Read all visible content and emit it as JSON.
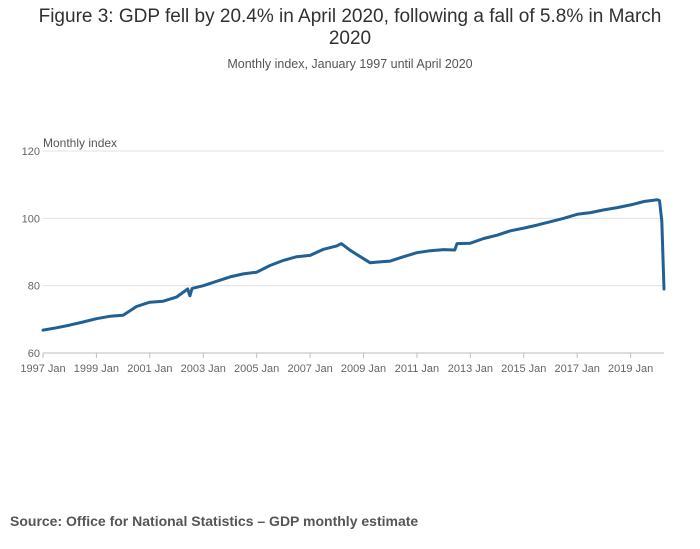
{
  "title": "Figure 3: GDP fell by 20.4% in April 2020, following a fall of 5.8% in March 2020",
  "subtitle": "Monthly index, January 1997 until April 2020",
  "source": "Source: Office for National Statistics – GDP monthly estimate",
  "colors": {
    "line": "#206095",
    "grid": "#e0e0e0",
    "axis": "#bebebe"
  },
  "chart_data": {
    "type": "line",
    "title": "Figure 3: GDP fell by 20.4% in April 2020, following a fall of 5.8% in March 2020",
    "subtitle": "Monthly index, January 1997 until April 2020",
    "ylabel": "Monthly index",
    "xlabel": "",
    "ylim": [
      60,
      120
    ],
    "xlim": [
      "1997-01",
      "2020-04"
    ],
    "y_ticks": [
      "60",
      "80",
      "100",
      "120"
    ],
    "x_ticks": [
      "1997 Jan",
      "1999 Jan",
      "2001 Jan",
      "2003 Jan",
      "2005 Jan",
      "2007 Jan",
      "2009 Jan",
      "2011 Jan",
      "2013 Jan",
      "2015 Jan",
      "2017 Jan",
      "2019 Jan"
    ],
    "grid": "horizontal",
    "series": [
      {
        "x": [
          "1997-01",
          "1997-07",
          "1998-01",
          "1998-07",
          "1999-01",
          "1999-07",
          "2000-01",
          "2000-07",
          "2001-01",
          "2001-07",
          "2002-01",
          "2002-06",
          "2002-07",
          "2002-08",
          "2003-01",
          "2003-07",
          "2004-01",
          "2004-07",
          "2005-01",
          "2005-07",
          "2006-01",
          "2006-07",
          "2007-01",
          "2007-07",
          "2008-01",
          "2008-03",
          "2008-07",
          "2009-01",
          "2009-04",
          "2009-07",
          "2010-01",
          "2010-07",
          "2011-01",
          "2011-07",
          "2012-01",
          "2012-06",
          "2012-07",
          "2013-01",
          "2013-07",
          "2014-01",
          "2014-07",
          "2015-01",
          "2015-07",
          "2016-01",
          "2016-07",
          "2017-01",
          "2017-07",
          "2018-01",
          "2018-07",
          "2019-01",
          "2019-07",
          "2020-01",
          "2020-02",
          "2020-03",
          "2020-04"
        ],
        "values": [
          66.8,
          67.5,
          68.3,
          69.2,
          70.2,
          70.9,
          71.2,
          73.8,
          75.1,
          75.4,
          76.6,
          79.0,
          77.0,
          79.2,
          80.0,
          81.3,
          82.6,
          83.5,
          84.0,
          86.0,
          87.5,
          88.6,
          89.0,
          90.8,
          91.8,
          92.5,
          90.5,
          88.0,
          86.8,
          87.0,
          87.3,
          88.6,
          89.8,
          90.4,
          90.7,
          90.6,
          92.5,
          92.6,
          94.0,
          95.0,
          96.3,
          97.1,
          98.0,
          99.0,
          100.0,
          101.2,
          101.7,
          102.5,
          103.2,
          104.0,
          105.0,
          105.5,
          105.3,
          99.2,
          79.0
        ]
      }
    ]
  }
}
